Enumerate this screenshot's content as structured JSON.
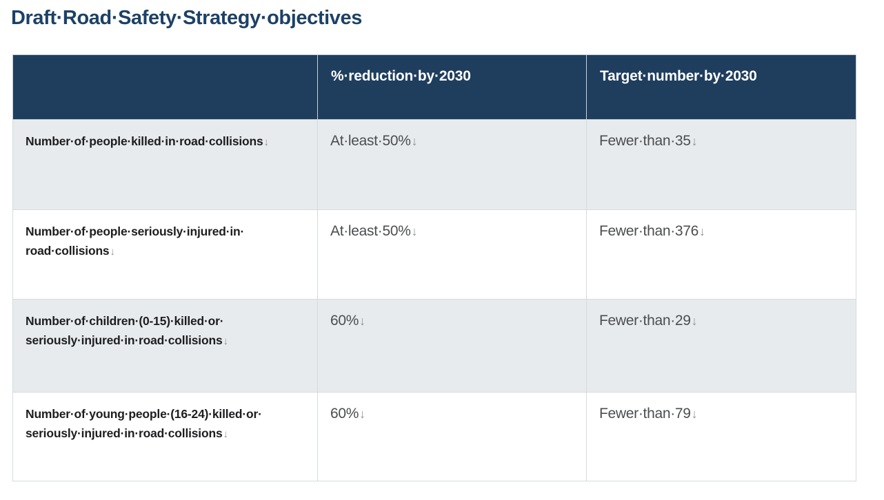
{
  "page": {
    "title": "Draft·Road·Safety·Strategy·objectives"
  },
  "marks": {
    "line_break": "↓",
    "space_dot": "·"
  },
  "colors": {
    "title_text": "#1d4166",
    "header_bg": "#1f3e5e",
    "header_text": "#ffffff",
    "alt_row_bg": "#e8ebee",
    "objective_text": "#1e1e20",
    "value_text": "#4b4d4f",
    "formatting_mark": "#8e9194",
    "table_border": "#d6dadd"
  },
  "table": {
    "columns": [
      "",
      "%·reduction·by·2030",
      "Target·number·by·2030"
    ],
    "rows": [
      {
        "objective": "Number·of·people·killed·in·road·collisions",
        "reduction": "At·least·50%",
        "target": "Fewer·than·35"
      },
      {
        "objective": "Number·of·people·seriously·injured·in·\nroad·collisions",
        "reduction": "At·least·50%",
        "target": "Fewer·than·376"
      },
      {
        "objective": "Number·of·children·(0-15)·killed·or·\nseriously·injured·in·road·collisions",
        "reduction": "60%",
        "target": "Fewer·than·29"
      },
      {
        "objective": "Number·of·young·people·(16-24)·killed·or·\nseriously·injured·in·road·collisions",
        "reduction": "60%",
        "target": "Fewer·than·79"
      }
    ]
  }
}
